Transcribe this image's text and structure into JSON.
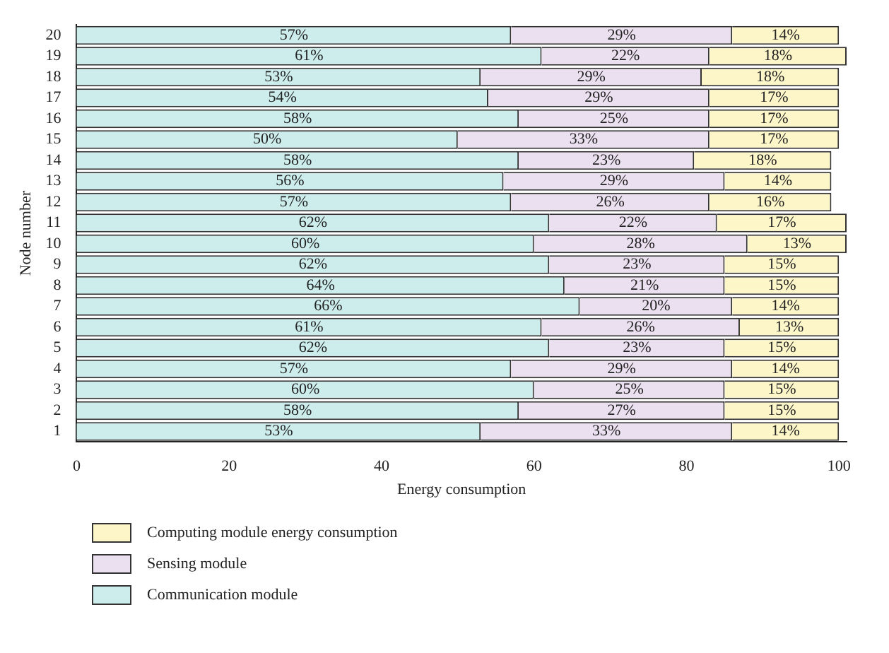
{
  "chart_data": {
    "type": "bar",
    "orientation": "horizontal",
    "stacked": true,
    "xlabel": "Energy consumption",
    "ylabel": "Node number",
    "categories": [
      "20",
      "19",
      "18",
      "17",
      "16",
      "15",
      "14",
      "13",
      "12",
      "11",
      "10",
      "9",
      "8",
      "7",
      "6",
      "5",
      "4",
      "3",
      "2",
      "1"
    ],
    "xlim": [
      0,
      101
    ],
    "xticks": [
      0,
      20,
      40,
      60,
      80,
      100
    ],
    "grid": false,
    "legend": "bottom left",
    "series": [
      {
        "name": "Communication module",
        "color": "#cdeded",
        "values": [
          57,
          61,
          53,
          54,
          58,
          50,
          58,
          56,
          57,
          62,
          60,
          62,
          64,
          66,
          61,
          62,
          57,
          60,
          58,
          53
        ],
        "value_labels": [
          "57%",
          "61%",
          "53%",
          "54%",
          "58%",
          "50%",
          "58%",
          "56%",
          "57%",
          "62%",
          "60%",
          "62%",
          "64%",
          "66%",
          "61%",
          "62%",
          "57%",
          "60%",
          "58%",
          "53%"
        ]
      },
      {
        "name": "Sensing module",
        "color": "#ebe0f0",
        "values": [
          29,
          22,
          29,
          29,
          25,
          33,
          23,
          29,
          26,
          22,
          28,
          23,
          21,
          20,
          26,
          23,
          29,
          25,
          27,
          33
        ],
        "value_labels": [
          "29%",
          "22%",
          "29%",
          "29%",
          "25%",
          "33%",
          "23%",
          "29%",
          "26%",
          "22%",
          "28%",
          "23%",
          "21%",
          "20%",
          "26%",
          "23%",
          "29%",
          "25%",
          "27%",
          "33%"
        ]
      },
      {
        "name": "Computing module energy consumption",
        "color": "#fdf6c8",
        "values": [
          14,
          18,
          18,
          17,
          17,
          17,
          18,
          14,
          16,
          17,
          13,
          15,
          15,
          14,
          13,
          15,
          14,
          15,
          15,
          14
        ],
        "value_labels": [
          "14%",
          "18%",
          "18%",
          "17%",
          "17%",
          "17%",
          "18%",
          "14%",
          "16%",
          "17%",
          "13%",
          "15%",
          "15%",
          "14%",
          "13%",
          "15%",
          "14%",
          "15%",
          "15%",
          "14%"
        ]
      }
    ]
  }
}
